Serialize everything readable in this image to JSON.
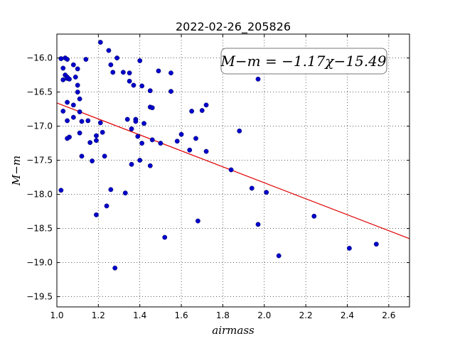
{
  "chart_data": {
    "type": "scatter",
    "title": "2022-02-26_205826",
    "xlabel": "airmass",
    "ylabel": "M−m",
    "xlim": [
      1.0,
      2.7
    ],
    "ylim": [
      -19.65,
      -15.65
    ],
    "y_inverted": true,
    "grid": true,
    "x_ticks": [
      1.0,
      1.2,
      1.4,
      1.6,
      1.8,
      2.0,
      2.2,
      2.4,
      2.6
    ],
    "y_ticks": [
      -16.0,
      -16.5,
      -17.0,
      -17.5,
      -18.0,
      -18.5,
      -19.0,
      -19.5
    ],
    "x_tick_labels": [
      "1.0",
      "1.2",
      "1.4",
      "1.6",
      "1.8",
      "2.0",
      "2.2",
      "2.4",
      "2.6"
    ],
    "y_tick_labels": [
      "−16.0",
      "−16.5",
      "−17.0",
      "−17.5",
      "−18.0",
      "−18.5",
      "−19.0",
      "−19.5"
    ],
    "annotation": "M−m = −1.17χ−15.49",
    "fit": {
      "slope": -1.17,
      "intercept": -15.49,
      "color": "#e00000"
    },
    "point_color": "#0000cc",
    "points": [
      [
        1.02,
        -16.01
      ],
      [
        1.04,
        -16.0
      ],
      [
        1.05,
        -16.02
      ],
      [
        1.03,
        -16.15
      ],
      [
        1.04,
        -16.25
      ],
      [
        1.03,
        -16.32
      ],
      [
        1.05,
        -16.3
      ],
      [
        1.06,
        -16.31
      ],
      [
        1.05,
        -16.28
      ],
      [
        1.08,
        -16.1
      ],
      [
        1.1,
        -16.16
      ],
      [
        1.09,
        -16.28
      ],
      [
        1.1,
        -16.4
      ],
      [
        1.1,
        -16.5
      ],
      [
        1.11,
        -16.6
      ],
      [
        1.05,
        -16.65
      ],
      [
        1.08,
        -16.69
      ],
      [
        1.03,
        -16.78
      ],
      [
        1.11,
        -16.79
      ],
      [
        1.08,
        -16.87
      ],
      [
        1.05,
        -16.92
      ],
      [
        1.12,
        -16.93
      ],
      [
        1.15,
        -16.92
      ],
      [
        1.06,
        -17.16
      ],
      [
        1.05,
        -17.18
      ],
      [
        1.11,
        -17.1
      ],
      [
        1.14,
        -16.02
      ],
      [
        1.21,
        -15.77
      ],
      [
        1.25,
        -15.89
      ],
      [
        1.29,
        -16.0
      ],
      [
        1.26,
        -16.1
      ],
      [
        1.27,
        -16.21
      ],
      [
        1.32,
        -16.21
      ],
      [
        1.35,
        -16.22
      ],
      [
        1.35,
        -16.34
      ],
      [
        1.37,
        -16.4
      ],
      [
        1.4,
        -16.04
      ],
      [
        1.41,
        -16.41
      ],
      [
        1.45,
        -16.48
      ],
      [
        1.49,
        -16.19
      ],
      [
        1.55,
        -16.22
      ],
      [
        1.55,
        -16.49
      ],
      [
        1.45,
        -16.72
      ],
      [
        1.46,
        -16.73
      ],
      [
        1.34,
        -16.9
      ],
      [
        1.38,
        -16.9
      ],
      [
        1.38,
        -16.93
      ],
      [
        1.42,
        -16.96
      ],
      [
        1.36,
        -17.04
      ],
      [
        1.39,
        -17.15
      ],
      [
        1.41,
        -17.25
      ],
      [
        1.46,
        -17.2
      ],
      [
        1.5,
        -17.25
      ],
      [
        1.21,
        -16.95
      ],
      [
        1.22,
        -17.09
      ],
      [
        1.19,
        -17.14
      ],
      [
        1.19,
        -17.21
      ],
      [
        1.16,
        -17.24
      ],
      [
        1.12,
        -17.44
      ],
      [
        1.23,
        -17.44
      ],
      [
        1.17,
        -17.51
      ],
      [
        1.36,
        -17.56
      ],
      [
        1.4,
        -17.5
      ],
      [
        1.45,
        -17.58
      ],
      [
        1.6,
        -17.12
      ],
      [
        1.58,
        -17.22
      ],
      [
        1.64,
        -17.35
      ],
      [
        1.65,
        -16.78
      ],
      [
        1.7,
        -16.77
      ],
      [
        1.72,
        -16.69
      ],
      [
        1.67,
        -17.18
      ],
      [
        1.72,
        -17.37
      ],
      [
        1.88,
        -17.07
      ],
      [
        1.97,
        -16.31
      ],
      [
        1.84,
        -17.64
      ],
      [
        1.94,
        -17.91
      ],
      [
        2.01,
        -17.97
      ],
      [
        1.02,
        -17.94
      ],
      [
        1.26,
        -17.93
      ],
      [
        1.33,
        -17.98
      ],
      [
        1.24,
        -18.17
      ],
      [
        1.19,
        -18.3
      ],
      [
        1.68,
        -18.39
      ],
      [
        1.97,
        -18.44
      ],
      [
        2.24,
        -18.32
      ],
      [
        1.52,
        -18.63
      ],
      [
        2.07,
        -18.9
      ],
      [
        2.41,
        -18.79
      ],
      [
        2.54,
        -18.73
      ],
      [
        1.28,
        -19.08
      ]
    ]
  }
}
